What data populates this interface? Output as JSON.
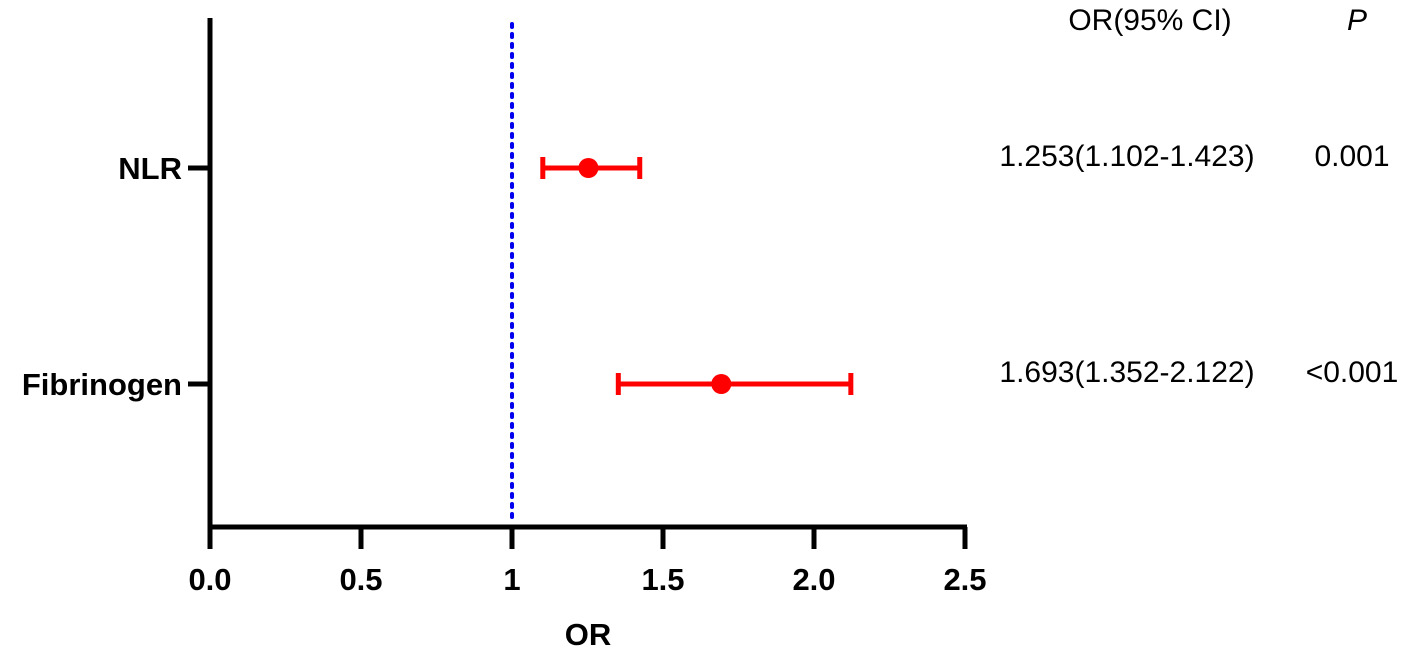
{
  "chart_data": {
    "type": "forest",
    "xlabel": "OR",
    "xlim": [
      0,
      2.5
    ],
    "x_ticks": [
      0,
      0.5,
      1,
      1.5,
      2,
      2.5
    ],
    "x_tick_labels": [
      "0.0",
      "0.5",
      "1",
      "1.5",
      "2.0",
      "2.5"
    ],
    "reference_line": 1,
    "reference_line_color": "#0000ee",
    "marker_color": "#ff0000",
    "columns": {
      "or_header": "OR(95% CI)",
      "p_header": "P"
    },
    "rows": [
      {
        "label": "NLR",
        "or": 1.253,
        "ci_low": 1.102,
        "ci_high": 1.423,
        "or_text": "1.253(1.102-1.423)",
        "p_text": "0.001"
      },
      {
        "label": "Fibrinogen",
        "or": 1.693,
        "ci_low": 1.352,
        "ci_high": 2.122,
        "or_text": "1.693(1.352-2.122)",
        "p_text": "<0.001"
      }
    ]
  }
}
